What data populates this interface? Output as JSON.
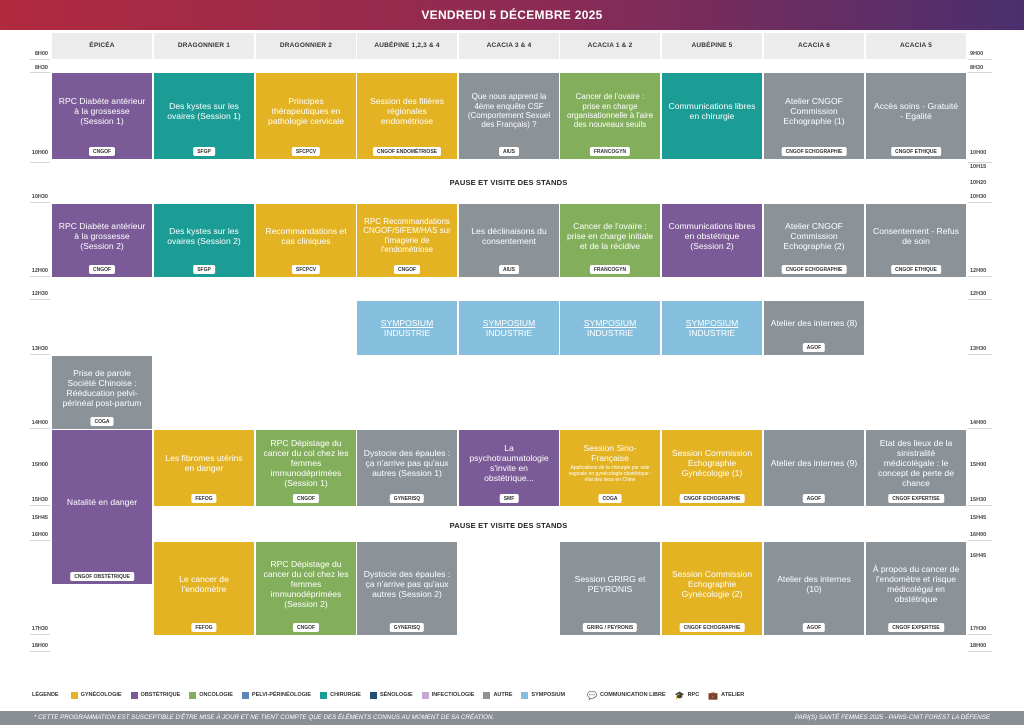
{
  "banner": {
    "title": "VENDREDI 5 DÉCEMBRE 2025"
  },
  "rooms": [
    "ÉPICÉA",
    "DRAGONNIER 1",
    "DRAGONNIER 2",
    "AUBÉPINE 1,2,3 & 4",
    "ACACIA 3 & 4",
    "ACACIA 1 & 2",
    "AUBÉPINE 5",
    "ACACIA  6",
    "ACACIA 5"
  ],
  "times_left": [
    "8H00",
    "8H30",
    "10H00",
    "10H30",
    "12H00",
    "12H30",
    "13H30",
    "14H00",
    "15H00",
    "15H30",
    "15H45",
    "16H00",
    "17H30",
    "18H00"
  ],
  "times_right": [
    "9H00",
    "8H30",
    "10H00",
    "10H15",
    "10H20",
    "10H30",
    "12H00",
    "12H30",
    "13H30",
    "14H00",
    "15H00",
    "15H30",
    "15H45",
    "16H00",
    "16H45",
    "17H30",
    "18H00"
  ],
  "pauses": [
    "PAUSE ET VISITE DES STANDS",
    "PAUSE ET VISITE DES STANDS"
  ],
  "sessions": {
    "s1": {
      "title": "RPC Diabète antérieur à la grossesse (Session 1)",
      "tag": "CNGOF"
    },
    "s2": {
      "title": "Des kystes sur les ovaires (Session 1)",
      "tag": "SFGP"
    },
    "s3": {
      "title": "Principes thérapeutiques en pathologie cervicale",
      "tag": "SFCPCV"
    },
    "s4": {
      "title": "Session des filières régionales endométriose",
      "tag": "CNGOF ENDOMÉTRIOSE"
    },
    "s5": {
      "title": "Que nous apprend la 4ème enquête CSF (Comportement Sexuel des Français) ?",
      "tag": "AIUS"
    },
    "s6": {
      "title": "Cancer de l'ovaire : prise en charge organisationnelle à l'aire des nouveaux seuils",
      "tag": "FRANCOGYN"
    },
    "s7": {
      "title": "Communications libres en chirurgie"
    },
    "s8": {
      "title": "Atelier CNGOF Commission Echographie (1)",
      "tag": "CNGOF ECHOGRAPHIE"
    },
    "s9": {
      "title": "Accès soins - Gratuité - Egalité",
      "tag": "CNGOF ETHIQUE"
    },
    "s10": {
      "title": "RPC Diabète antérieur à la grossesse (Session 2)",
      "tag": "CNGOF"
    },
    "s11": {
      "title": "Des kystes sur les ovaires (Session 2)",
      "tag": "SFGP"
    },
    "s12": {
      "title": "Recommandations et cas cliniques",
      "tag": "SFCPCV"
    },
    "s13": {
      "title": "RPC Recommandations CNGOF/SIFEM/HAS sur l'imagerie de l'endométriose",
      "tag": "CNGOF"
    },
    "s14": {
      "title": "Les déclinaisons du consentement",
      "tag": "AIUS"
    },
    "s15": {
      "title": "Cancer de l'ovaire : prise en charge initiale et de la récidive",
      "tag": "FRANCOGYN"
    },
    "s16": {
      "title": "Communications libres en obstétrique (Session 2)"
    },
    "s17": {
      "title": "Atelier CNGOF Commission Echographie (2)",
      "tag": "CNGOF ECHOGRAPHIE"
    },
    "s18": {
      "title": "Consentement - Refus de soin",
      "tag": "CNGOF ETHIQUE"
    },
    "sym1": {
      "link": "SYMPOSIUM",
      "title": "INDUSTRIE"
    },
    "sym2": {
      "link": "SYMPOSIUM",
      "title": "INDUSTRIE"
    },
    "sym3": {
      "link": "SYMPOSIUM",
      "title": "INDUSTRIE"
    },
    "sym4": {
      "link": "SYMPOSIUM",
      "title": "INDUSTRIE"
    },
    "s19": {
      "title": "Atelier des internes (8)",
      "tag": "AGOF"
    },
    "s20": {
      "title": "Prise de parole Société Chinoise : Rééducation pelvi-périnéal post-partum",
      "tag": "COGA"
    },
    "s21": {
      "title": "Natalité en danger",
      "tag": "CNGOF OBSTÉTRIQUE"
    },
    "s22": {
      "title": "Les fibromes utérins en danger",
      "tag": "FEFOG"
    },
    "s23": {
      "title": "RPC Dépistage du cancer du col chez les femmes immunodéprimées (Session 1)",
      "tag": "CNGOF"
    },
    "s24": {
      "title": "Dystocie des épaules : ça n'arrive pas qu'aux autres (Session 1)",
      "tag": "GYNERISQ"
    },
    "s25": {
      "title": "La psychotraumatologie s'invite en obstétrique...",
      "tag": "SMF"
    },
    "s26": {
      "title": "Session Sino-Française",
      "sub": "Applications de la chirurgie par voie vaginale en gynécologie-obstétrique : état des lieux en Chine",
      "tag": "COGA"
    },
    "s27": {
      "title": "Session Commission Echographie Gynécologie (1)",
      "tag": "CNGOF ECHOGRAPHIE"
    },
    "s28": {
      "title": "Atelier des internes (9)",
      "tag": "AGOF"
    },
    "s29": {
      "title": "Etat des lieux de la sinistralité médicolégale : le concept de perte de chance",
      "tag": "CNGOF EXPERTISE"
    },
    "s30": {
      "title": "Le cancer de l'endomètre",
      "tag": "FEFOG"
    },
    "s31": {
      "title": "RPC Dépistage du cancer du col chez les femmes immunodéprimées (Session 2)",
      "tag": "CNGOF"
    },
    "s32": {
      "title": "Dystocie des épaules : ça n'arrive pas qu'aux autres (Session 2)",
      "tag": "GYNERISQ"
    },
    "s33": {
      "title": "Session GRIRG et PEYRONIS",
      "tag": "GRIRG / PEYRONIS"
    },
    "s34": {
      "title": "Session Commission Echographie Gynécologie (2)",
      "tag": "CNGOF ECHOGRAPHIE"
    },
    "s35": {
      "title": "Atelier des internes (10)",
      "tag": "AGOF"
    },
    "s36": {
      "title": "À propos du cancer de l'endomètre et risque médicolégal en obstétrique",
      "tag": "CNGOF EXPERTISE"
    }
  },
  "legend": {
    "title": "LÉGENDE",
    "items": [
      {
        "label": "GYNÉCOLOGIE",
        "color": "#e3b323"
      },
      {
        "label": "OBSTÉTRIQUE",
        "color": "#7a5a97"
      },
      {
        "label": "ONCOLOGIE",
        "color": "#83af5c"
      },
      {
        "label": "PELVI-PÉRINÉOLOGIE",
        "color": "#5b86b8"
      },
      {
        "label": "CHIRURGIE",
        "color": "#1b9c95"
      },
      {
        "label": "SÉNOLOGIE",
        "color": "#1f4d73"
      },
      {
        "label": "INFECTIOLOGIE",
        "color": "#c6a9d3"
      },
      {
        "label": "AUTRE",
        "color": "#8b9298"
      },
      {
        "label": "SYMPOSIUM",
        "color": "#85bfdd"
      }
    ],
    "icons": [
      {
        "label": "COMMUNICATION LIBRE",
        "icon": "speech-bubbles-icon"
      },
      {
        "label": "RPC",
        "icon": "graduation-cap-icon"
      },
      {
        "label": "ATELIER",
        "icon": "toolbox-icon"
      }
    ]
  },
  "footer": {
    "disclaimer": "* CETTE PROGRAMMATION EST SUSCEPTIBLE D'ÊTRE MISE À JOUR ET NE TIENT COMPTE QUE DES ÉLÉMENTS CONNUS AU MOMENT DE SA CRÉATION.",
    "event": "PARI(S) SANTÉ FEMMES 2025 - PARIS-CNIT FOREST LA DÉFENSE"
  }
}
